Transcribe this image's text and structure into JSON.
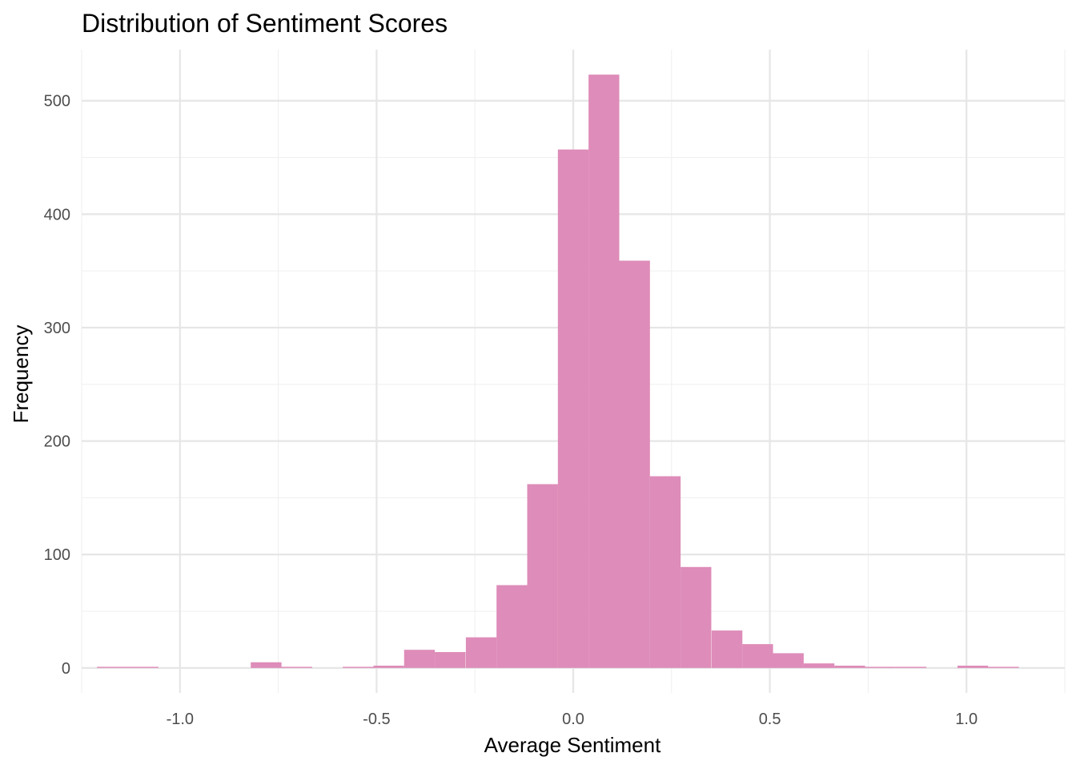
{
  "chart_data": {
    "type": "bar",
    "title": "Distribution of Sentiment Scores",
    "xlabel": "Average Sentiment",
    "ylabel": "Frequency",
    "xlim": [
      -1.25,
      1.25
    ],
    "ylim": [
      -22,
      545
    ],
    "x_ticks": [
      {
        "value": -1.0,
        "label": "-1.0"
      },
      {
        "value": -0.5,
        "label": "-0.5"
      },
      {
        "value": 0.0,
        "label": "0.0"
      },
      {
        "value": 0.5,
        "label": "0.5"
      },
      {
        "value": 1.0,
        "label": "1.0"
      }
    ],
    "y_ticks": [
      {
        "value": 0,
        "label": "0"
      },
      {
        "value": 100,
        "label": "100"
      },
      {
        "value": 200,
        "label": "200"
      },
      {
        "value": 300,
        "label": "300"
      },
      {
        "value": 400,
        "label": "400"
      },
      {
        "value": 500,
        "label": "500"
      }
    ],
    "grid": true,
    "bin_width": 0.0781,
    "bins": [
      {
        "start": -1.211,
        "count": 1
      },
      {
        "start": -1.133,
        "count": 1
      },
      {
        "start": -1.055,
        "count": 0
      },
      {
        "start": -0.977,
        "count": 0
      },
      {
        "start": -0.899,
        "count": 0
      },
      {
        "start": -0.82,
        "count": 5
      },
      {
        "start": -0.742,
        "count": 1
      },
      {
        "start": -0.664,
        "count": 0
      },
      {
        "start": -0.586,
        "count": 1
      },
      {
        "start": -0.508,
        "count": 2
      },
      {
        "start": -0.43,
        "count": 16
      },
      {
        "start": -0.352,
        "count": 14
      },
      {
        "start": -0.273,
        "count": 27
      },
      {
        "start": -0.195,
        "count": 73
      },
      {
        "start": -0.117,
        "count": 162
      },
      {
        "start": -0.039,
        "count": 457
      },
      {
        "start": 0.039,
        "count": 523
      },
      {
        "start": 0.117,
        "count": 359
      },
      {
        "start": 0.195,
        "count": 169
      },
      {
        "start": 0.273,
        "count": 89
      },
      {
        "start": 0.352,
        "count": 33
      },
      {
        "start": 0.43,
        "count": 21
      },
      {
        "start": 0.508,
        "count": 13
      },
      {
        "start": 0.586,
        "count": 4
      },
      {
        "start": 0.664,
        "count": 2
      },
      {
        "start": 0.742,
        "count": 1
      },
      {
        "start": 0.82,
        "count": 1
      },
      {
        "start": 0.899,
        "count": 0
      },
      {
        "start": 0.977,
        "count": 2
      },
      {
        "start": 1.055,
        "count": 1
      }
    ],
    "colors": {
      "bar_fill": "#de8cb9",
      "grid_major": "#e6e6e6",
      "grid_minor": "#f0f0f0"
    }
  }
}
